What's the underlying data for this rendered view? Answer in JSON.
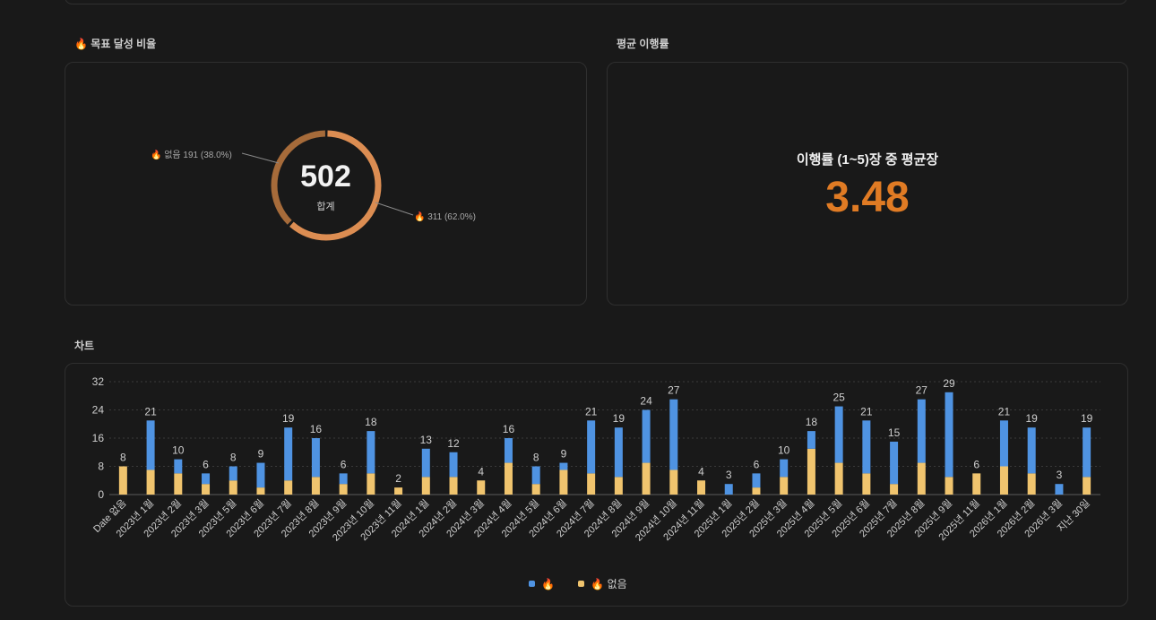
{
  "goal_section": {
    "title": "🔥 목표 달성 비율"
  },
  "donut": {
    "total": "502",
    "total_label": "합계",
    "segments": [
      {
        "label": "🔥 없음  191 (38.0%)",
        "value": 191,
        "color": "#a66b3a"
      },
      {
        "label": "🔥 311 (62.0%)",
        "value": 311,
        "color": "#dc8d52"
      }
    ]
  },
  "avg_section": {
    "title": "평균 이행률"
  },
  "avg": {
    "label": "이행률 (1~5)장 중 평균장",
    "value": "3.48",
    "color": "#e07b24"
  },
  "chart_section": {
    "title": "차트"
  },
  "chart_data": {
    "type": "bar",
    "stacked": true,
    "title": "차트",
    "xlabel": "",
    "ylabel": "",
    "ylim": [
      0,
      32
    ],
    "yticks": [
      0,
      8,
      16,
      24,
      32
    ],
    "categories": [
      "Date 없음",
      "2023년 1월",
      "2023년 2월",
      "2023년 3월",
      "2023년 5월",
      "2023년 6월",
      "2023년 7월",
      "2023년 8월",
      "2023년 9월",
      "2023년 10월",
      "2023년 11월",
      "2024년 1월",
      "2024년 2월",
      "2024년 3월",
      "2024년 4월",
      "2024년 5월",
      "2024년 6월",
      "2024년 7월",
      "2024년 8월",
      "2024년 9월",
      "2024년 10월",
      "2024년 11월",
      "2025년 1월",
      "2025년 2월",
      "2025년 3월",
      "2025년 4월",
      "2025년 5월",
      "2025년 6월",
      "2025년 7월",
      "2025년 8월",
      "2025년 9월",
      "2025년 11월",
      "2026년 1월",
      "2026년 2월",
      "2026년 3월",
      "지난 30일"
    ],
    "series": [
      {
        "name": "🔥 없음",
        "color": "#f0c46e",
        "values": [
          8,
          7,
          6,
          3,
          4,
          2,
          4,
          5,
          3,
          6,
          2,
          5,
          5,
          4,
          9,
          3,
          7,
          6,
          5,
          9,
          7,
          4,
          0,
          2,
          5,
          13,
          9,
          6,
          3,
          9,
          5,
          6,
          8,
          6,
          0,
          5
        ]
      },
      {
        "name": "🔥",
        "color": "#4f93e2",
        "values": [
          0,
          14,
          4,
          3,
          4,
          7,
          15,
          11,
          3,
          12,
          0,
          8,
          7,
          0,
          7,
          5,
          2,
          15,
          14,
          15,
          20,
          0,
          3,
          4,
          5,
          5,
          16,
          15,
          12,
          18,
          24,
          0,
          13,
          13,
          3,
          14
        ]
      }
    ],
    "totals": [
      8,
      21,
      10,
      6,
      8,
      9,
      19,
      16,
      6,
      18,
      2,
      13,
      12,
      4,
      16,
      8,
      9,
      21,
      19,
      24,
      27,
      4,
      3,
      6,
      10,
      18,
      25,
      21,
      15,
      27,
      29,
      6,
      21,
      19,
      3,
      19
    ],
    "legend": [
      "🔥",
      "🔥 없음"
    ]
  }
}
